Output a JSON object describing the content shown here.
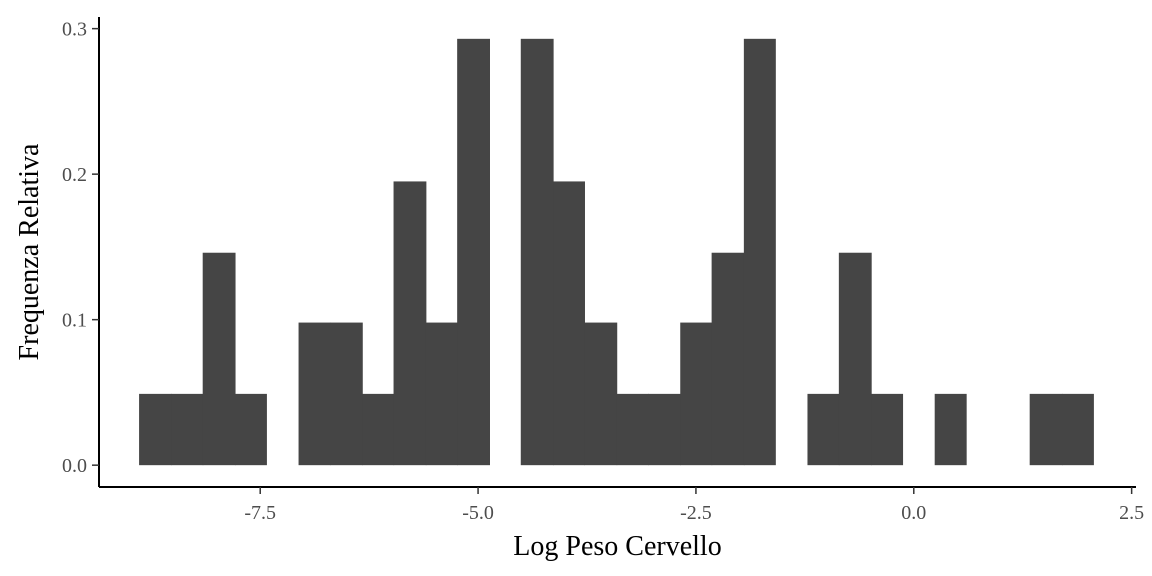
{
  "chart_data": {
    "type": "bar",
    "title": "",
    "xlabel": "Log Peso Cervello",
    "ylabel": "Frequenza Relativa",
    "xlim": [
      -9.35,
      2.55
    ],
    "ylim": [
      -0.015,
      0.308
    ],
    "x_ticks": [
      -7.5,
      -5.0,
      -2.5,
      0.0,
      2.5
    ],
    "x_tick_labels": [
      "-7.5",
      "-5.0",
      "-2.5",
      "0.0",
      "2.5"
    ],
    "y_ticks": [
      0.0,
      0.1,
      0.2,
      0.3
    ],
    "y_tick_labels": [
      "0.0",
      "0.1",
      "0.2",
      "0.3"
    ],
    "grid": false,
    "bar_color": "#454545",
    "bins": [
      {
        "x0": -8.89,
        "x1": -8.52,
        "value": 0.049
      },
      {
        "x0": -8.52,
        "x1": -8.16,
        "value": 0.049
      },
      {
        "x0": -8.16,
        "x1": -7.79,
        "value": 0.146
      },
      {
        "x0": -7.79,
        "x1": -7.43,
        "value": 0.049
      },
      {
        "x0": -7.43,
        "x1": -7.06,
        "value": 0.0
      },
      {
        "x0": -7.06,
        "x1": -6.7,
        "value": 0.098
      },
      {
        "x0": -6.7,
        "x1": -6.33,
        "value": 0.098
      },
      {
        "x0": -6.33,
        "x1": -5.97,
        "value": 0.049
      },
      {
        "x0": -5.97,
        "x1": -5.6,
        "value": 0.195
      },
      {
        "x0": -5.6,
        "x1": -5.24,
        "value": 0.098
      },
      {
        "x0": -5.24,
        "x1": -4.87,
        "value": 0.293
      },
      {
        "x0": -4.87,
        "x1": -4.51,
        "value": 0.0
      },
      {
        "x0": -4.51,
        "x1": -4.14,
        "value": 0.293
      },
      {
        "x0": -4.14,
        "x1": -3.78,
        "value": 0.195
      },
      {
        "x0": -3.78,
        "x1": -3.41,
        "value": 0.098
      },
      {
        "x0": -3.41,
        "x1": -3.05,
        "value": 0.049
      },
      {
        "x0": -3.05,
        "x1": -2.68,
        "value": 0.049
      },
      {
        "x0": -2.68,
        "x1": -2.32,
        "value": 0.098
      },
      {
        "x0": -2.32,
        "x1": -1.95,
        "value": 0.146
      },
      {
        "x0": -1.95,
        "x1": -1.59,
        "value": 0.293
      },
      {
        "x0": -1.59,
        "x1": -1.22,
        "value": 0.0
      },
      {
        "x0": -1.22,
        "x1": -0.86,
        "value": 0.049
      },
      {
        "x0": -0.86,
        "x1": -0.49,
        "value": 0.146
      },
      {
        "x0": -0.49,
        "x1": -0.13,
        "value": 0.049
      },
      {
        "x0": -0.13,
        "x1": 0.24,
        "value": 0.0
      },
      {
        "x0": 0.24,
        "x1": 0.6,
        "value": 0.049
      },
      {
        "x0": 0.6,
        "x1": 0.97,
        "value": 0.0
      },
      {
        "x0": 0.97,
        "x1": 1.33,
        "value": 0.0
      },
      {
        "x0": 1.33,
        "x1": 1.7,
        "value": 0.049
      },
      {
        "x0": 1.7,
        "x1": 2.06,
        "value": 0.049
      }
    ]
  }
}
